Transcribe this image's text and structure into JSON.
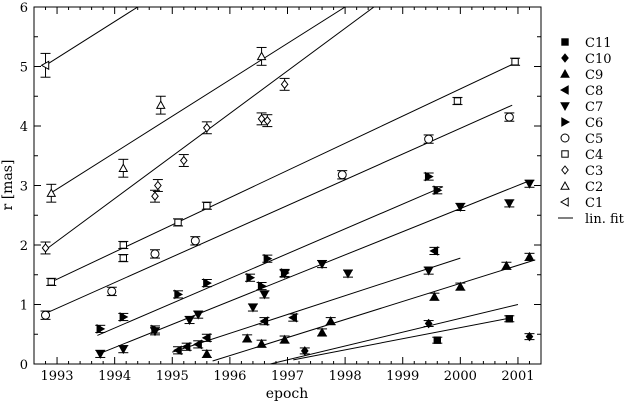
{
  "chart_data": {
    "type": "scatter",
    "xlabel": "epoch",
    "ylabel": "r [mas]",
    "xlim": [
      1992.6,
      2001.4
    ],
    "ylim": [
      0,
      6
    ],
    "xticks": [
      "1993",
      "1994",
      "1995",
      "1996",
      "1997",
      "1998",
      "1999",
      "2000",
      "2001"
    ],
    "yticks": [
      "0",
      "1",
      "2",
      "3",
      "4",
      "5",
      "6"
    ],
    "legend_position": "right",
    "series": [
      {
        "name": "C11",
        "marker": "square-filled",
        "err": 0.05,
        "points": [
          [
            1999.6,
            0.4
          ],
          [
            2000.85,
            0.76
          ]
        ],
        "fit": [
          [
            1997.1,
            0.07
          ],
          [
            2000.9,
            0.78
          ]
        ]
      },
      {
        "name": "C10",
        "marker": "diamond-filled",
        "err": 0.05,
        "points": [
          [
            1997.3,
            0.22
          ],
          [
            1999.45,
            0.68
          ],
          [
            2001.2,
            0.46
          ]
        ],
        "fit": [
          [
            1996.7,
            0.0
          ],
          [
            2001.0,
            1.0
          ]
        ]
      },
      {
        "name": "C9",
        "marker": "triangle-up-filled",
        "err": 0.06,
        "points": [
          [
            1995.6,
            0.17
          ],
          [
            1996.3,
            0.43
          ],
          [
            1996.55,
            0.34
          ],
          [
            1996.95,
            0.41
          ],
          [
            1997.6,
            0.53
          ],
          [
            1997.75,
            0.72
          ],
          [
            1999.55,
            1.13
          ],
          [
            2000.0,
            1.3
          ],
          [
            2000.8,
            1.65
          ],
          [
            2001.2,
            1.8
          ]
        ],
        "fit": [
          [
            1995.7,
            0.05
          ],
          [
            2001.3,
            1.75
          ]
        ]
      },
      {
        "name": "C8",
        "marker": "triangle-left-filled",
        "err": 0.06,
        "points": [
          [
            1995.1,
            0.23
          ],
          [
            1995.25,
            0.29
          ],
          [
            1995.45,
            0.33
          ],
          [
            1995.6,
            0.44
          ],
          [
            1996.6,
            0.72
          ],
          [
            1997.1,
            0.78
          ],
          [
            1999.55,
            1.9
          ]
        ],
        "fit": [
          [
            1995.0,
            0.2
          ],
          [
            2000.0,
            1.78
          ]
        ]
      },
      {
        "name": "C7",
        "marker": "triangle-down-filled",
        "err": 0.06,
        "points": [
          [
            1993.75,
            0.17
          ],
          [
            1994.15,
            0.25
          ],
          [
            1994.7,
            0.55
          ],
          [
            1995.3,
            0.74
          ],
          [
            1995.45,
            0.83
          ],
          [
            1996.4,
            0.95
          ],
          [
            1996.6,
            1.17
          ],
          [
            1996.95,
            1.52
          ],
          [
            1997.6,
            1.68
          ],
          [
            1998.05,
            1.52
          ],
          [
            1999.45,
            1.57
          ],
          [
            2000.0,
            2.64
          ],
          [
            2000.85,
            2.7
          ],
          [
            2001.2,
            3.03
          ]
        ],
        "fit": [
          [
            1993.75,
            0.18
          ],
          [
            2001.2,
            3.08
          ]
        ]
      },
      {
        "name": "C6",
        "marker": "triangle-right-filled",
        "err": 0.06,
        "points": [
          [
            1993.75,
            0.59
          ],
          [
            1994.15,
            0.79
          ],
          [
            1994.7,
            0.58
          ],
          [
            1995.1,
            1.17
          ],
          [
            1995.6,
            1.36
          ],
          [
            1996.35,
            1.45
          ],
          [
            1996.55,
            1.31
          ],
          [
            1996.65,
            1.77
          ],
          [
            1996.95,
            1.53
          ],
          [
            1999.45,
            3.15
          ],
          [
            1999.6,
            2.92
          ]
        ],
        "fit": [
          [
            1993.7,
            0.48
          ],
          [
            1999.7,
            2.98
          ]
        ]
      },
      {
        "name": "C5",
        "marker": "circle-open",
        "err": 0.07,
        "points": [
          [
            1992.8,
            0.82
          ],
          [
            1993.95,
            1.22
          ],
          [
            1994.7,
            1.85
          ],
          [
            1995.4,
            2.07
          ],
          [
            1997.95,
            3.18
          ],
          [
            1999.45,
            3.78
          ],
          [
            2000.85,
            4.15
          ]
        ],
        "fit": [
          [
            1992.8,
            0.85
          ],
          [
            2000.9,
            4.35
          ]
        ]
      },
      {
        "name": "C4",
        "marker": "square-open",
        "err": 0.06,
        "points": [
          [
            1992.9,
            1.38
          ],
          [
            1994.15,
            1.78
          ],
          [
            1994.15,
            2.0
          ],
          [
            1995.1,
            2.38
          ],
          [
            1995.6,
            2.66
          ],
          [
            1999.95,
            4.42
          ],
          [
            2000.95,
            5.08
          ]
        ],
        "fit": [
          [
            1992.9,
            1.38
          ],
          [
            2001.0,
            5.08
          ]
        ]
      },
      {
        "name": "C3",
        "marker": "diamond-open",
        "err": 0.1,
        "points": [
          [
            1992.8,
            1.95
          ],
          [
            1994.7,
            2.82
          ],
          [
            1994.75,
            3.0
          ],
          [
            1995.2,
            3.42
          ],
          [
            1995.6,
            3.97
          ],
          [
            1996.55,
            4.12
          ],
          [
            1996.65,
            4.09
          ],
          [
            1996.95,
            4.7
          ]
        ],
        "fit": [
          [
            1992.8,
            1.92
          ],
          [
            1998.5,
            6.0
          ]
        ]
      },
      {
        "name": "C2",
        "marker": "triangle-up-open",
        "err": 0.15,
        "points": [
          [
            1992.9,
            2.87
          ],
          [
            1994.15,
            3.29
          ],
          [
            1994.8,
            4.35
          ],
          [
            1996.55,
            5.17
          ]
        ],
        "fit": [
          [
            1992.9,
            2.88
          ],
          [
            1998.0,
            6.0
          ]
        ]
      },
      {
        "name": "C1",
        "marker": "triangle-left-open",
        "err": 0.2,
        "points": [
          [
            1992.8,
            5.02
          ]
        ],
        "fit": [
          [
            1992.8,
            5.02
          ],
          [
            1994.4,
            6.0
          ]
        ]
      }
    ],
    "fit_label": "lin. fit"
  }
}
